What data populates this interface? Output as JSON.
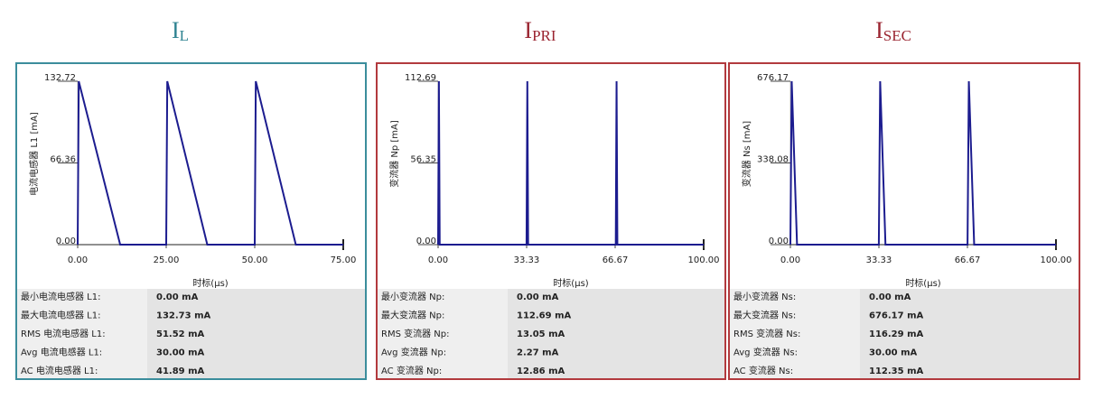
{
  "chart_data": [
    {
      "type": "line",
      "title": "I",
      "title_subscript": "L",
      "frame_color": "#3b8d9c",
      "title_color": "#2f8391",
      "y_label": "电流电感器 L1 [mA]",
      "x_label": "时标(µs)",
      "x": [
        0,
        0.3,
        12,
        25,
        25.3,
        36.6,
        50,
        50.3,
        61.6,
        75
      ],
      "series": [
        {
          "color": "#1c1c8f",
          "values": [
            0,
            132.72,
            0,
            0,
            132.72,
            0,
            0,
            132.72,
            0,
            0
          ]
        }
      ],
      "xlim": [
        0,
        75
      ],
      "xticks": [
        {
          "value": 0,
          "label": "0.00"
        },
        {
          "value": 25,
          "label": "25.00"
        },
        {
          "value": 50,
          "label": "50.00"
        },
        {
          "value": 75,
          "label": "75.00"
        }
      ],
      "ylim": [
        0,
        132.72
      ],
      "yticks": [
        {
          "value": 0,
          "label": "0.00"
        },
        {
          "value": 66.36,
          "label": "66.36"
        },
        {
          "value": 132.72,
          "label": "132.72"
        }
      ],
      "stats": [
        [
          "最小电流电感器 L1:",
          "0.00 mA"
        ],
        [
          "最大电流电感器 L1:",
          "132.73 mA"
        ],
        [
          "RMS 电流电感器 L1:",
          "51.52 mA"
        ],
        [
          "Avg 电流电感器 L1:",
          "30.00 mA"
        ],
        [
          "AC 电流电感器 L1:",
          "41.89 mA"
        ]
      ]
    },
    {
      "type": "line",
      "title": "I",
      "title_subscript": "PRI",
      "frame_color": "#b23a3e",
      "title_color": "#9a2430",
      "y_label": "变流器 Np [mA]",
      "x_label": "时标(µs)",
      "x": [
        0,
        0.3,
        0.6,
        1,
        33.3,
        33.6,
        33.9,
        66.9,
        67.2,
        67.5,
        100
      ],
      "series": [
        {
          "color": "#1c1c8f",
          "values": [
            0,
            112.69,
            0,
            0,
            0,
            112.69,
            0,
            0,
            112.69,
            0,
            0
          ]
        }
      ],
      "xlim": [
        0,
        100
      ],
      "xticks": [
        {
          "value": 0,
          "label": "0.00"
        },
        {
          "value": 33.33,
          "label": "33.33"
        },
        {
          "value": 66.67,
          "label": "66.67"
        },
        {
          "value": 100,
          "label": "100.00"
        }
      ],
      "ylim": [
        0,
        112.69
      ],
      "yticks": [
        {
          "value": 0,
          "label": "0.00"
        },
        {
          "value": 56.35,
          "label": "56.35"
        },
        {
          "value": 112.69,
          "label": "112.69"
        }
      ],
      "stats": [
        [
          "最小变流器 Np:",
          "0.00 mA"
        ],
        [
          "最大变流器 Np:",
          "112.69 mA"
        ],
        [
          "RMS 变流器 Np:",
          "13.05 mA"
        ],
        [
          "Avg 变流器 Np:",
          "2.27 mA"
        ],
        [
          "AC 变流器 Np:",
          "12.86 mA"
        ]
      ]
    },
    {
      "type": "line",
      "title": "I",
      "title_subscript": "SEC",
      "frame_color": "#b23a3e",
      "title_color": "#9a2430",
      "y_label": "变流器 Ns [mA]",
      "x_label": "时标(µs)",
      "x": [
        0,
        0.5,
        2.5,
        33.3,
        33.8,
        35.8,
        66.7,
        67.2,
        69.2,
        100
      ],
      "series": [
        {
          "color": "#1c1c8f",
          "values": [
            0,
            676.17,
            0,
            0,
            676.17,
            0,
            0,
            676.17,
            0,
            0
          ]
        }
      ],
      "xlim": [
        0,
        100
      ],
      "xticks": [
        {
          "value": 0,
          "label": "0.00"
        },
        {
          "value": 33.33,
          "label": "33.33"
        },
        {
          "value": 66.67,
          "label": "66.67"
        },
        {
          "value": 100,
          "label": "100.00"
        }
      ],
      "ylim": [
        0,
        676.17
      ],
      "yticks": [
        {
          "value": 0,
          "label": "0.00"
        },
        {
          "value": 338.08,
          "label": "338.08"
        },
        {
          "value": 676.17,
          "label": "676.17"
        }
      ],
      "stats": [
        [
          "最小变流器 Ns:",
          "0.00 mA"
        ],
        [
          "最大变流器 Ns:",
          "676.17 mA"
        ],
        [
          "RMS 变流器 Ns:",
          "116.29 mA"
        ],
        [
          "Avg 变流器 Ns:",
          "30.00 mA"
        ],
        [
          "AC 变流器 Ns:",
          "112.35 mA"
        ]
      ]
    }
  ]
}
